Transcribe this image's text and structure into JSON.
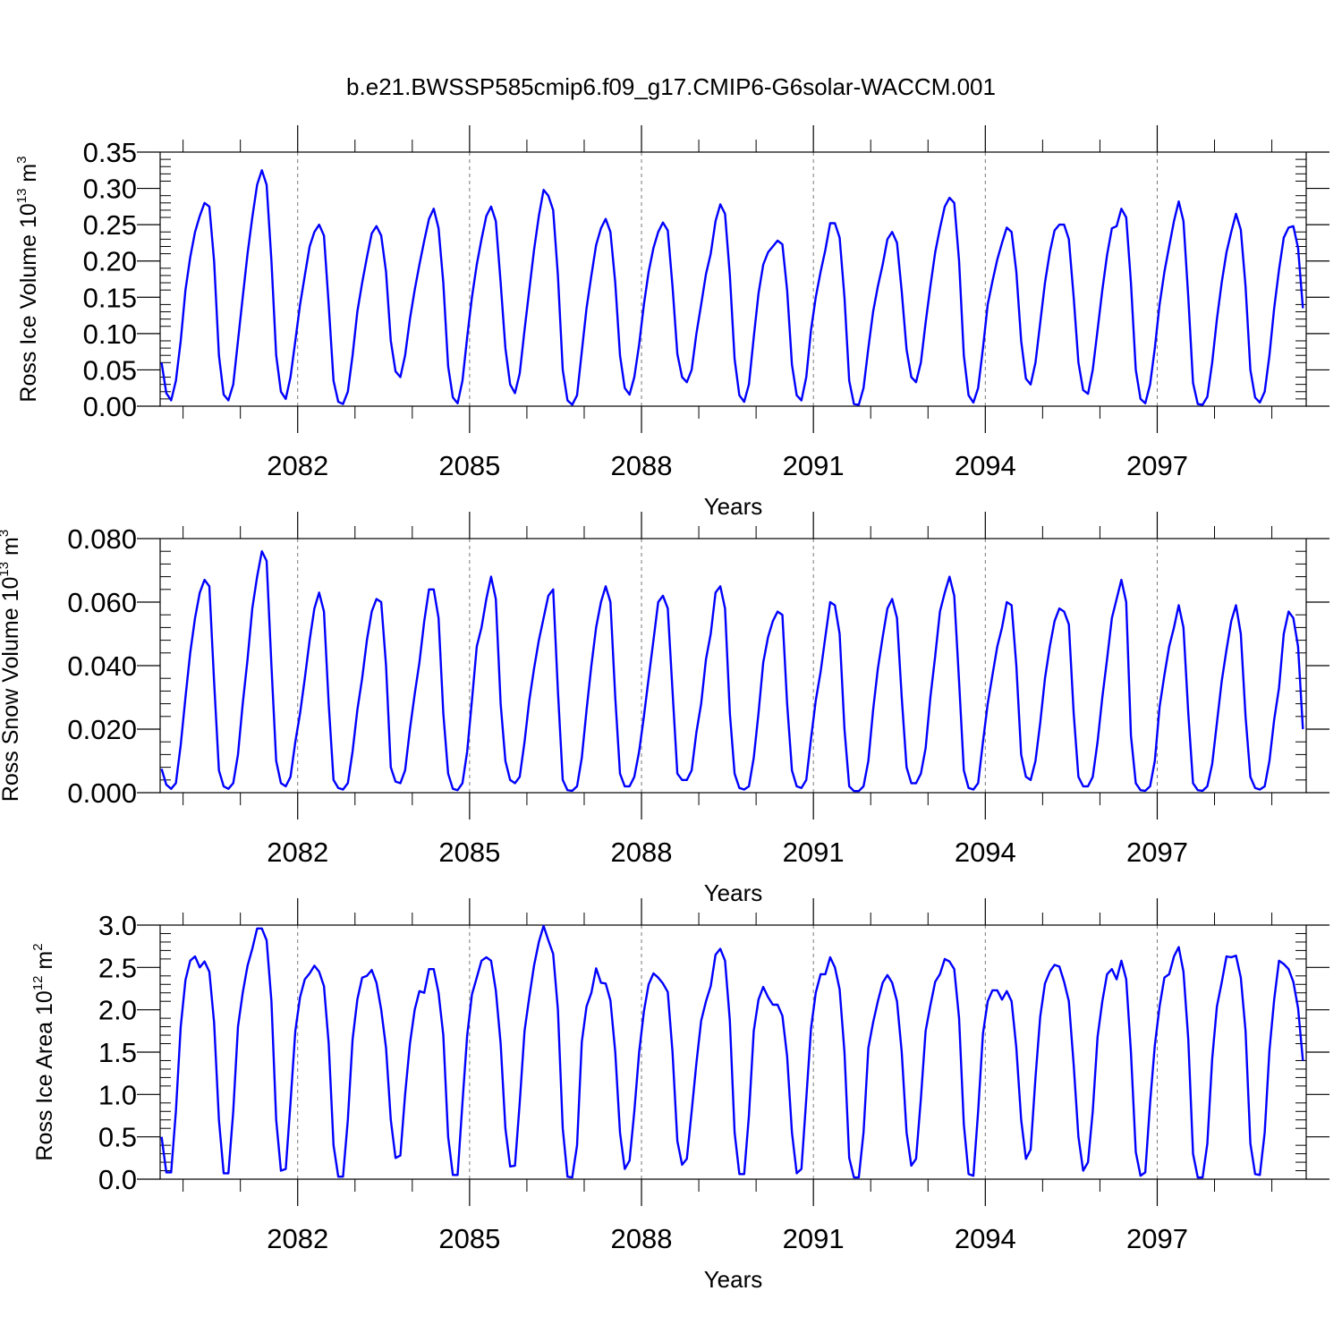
{
  "title": "b.e21.BWSSP585cmip6.f09_g17.CMIP6-G6solar-WACCM.001",
  "chart_data": [
    {
      "type": "line",
      "title": "b.e21.BWSSP585cmip6.f09_g17.CMIP6-G6solar-WACCM.001",
      "ylabel_main": "Ross Ice Volume 10",
      "ylabel_sup1": "13",
      "ylabel_mid": " m",
      "ylabel_sup2": "3",
      "xlabel": "Years",
      "xlim": [
        2079.6,
        2099.6
      ],
      "ylim": [
        0,
        0.35
      ],
      "xticks": [
        2082,
        2085,
        2088,
        2091,
        2094,
        2097
      ],
      "xtick_labels": [
        "2082",
        "2085",
        "2088",
        "2091",
        "2094",
        "2097"
      ],
      "yticks": [
        0,
        0.05,
        0.1,
        0.15,
        0.2,
        0.25,
        0.3,
        0.35
      ],
      "ytick_labels": [
        "0.00",
        "0.05",
        "0.10",
        "0.15",
        "0.20",
        "0.25",
        "0.30",
        "0.35"
      ],
      "grid": "dashed vertical at labeled years",
      "series": [
        {
          "color": "#0000ff",
          "t0": 2079.625,
          "dt": 0.0833333,
          "values": [
            0.06,
            0.018,
            0.008,
            0.035,
            0.09,
            0.16,
            0.205,
            0.24,
            0.262,
            0.28,
            0.275,
            0.2,
            0.07,
            0.016,
            0.008,
            0.03,
            0.09,
            0.15,
            0.21,
            0.26,
            0.305,
            0.325,
            0.305,
            0.2,
            0.07,
            0.02,
            0.01,
            0.04,
            0.09,
            0.14,
            0.18,
            0.22,
            0.24,
            0.25,
            0.235,
            0.14,
            0.035,
            0.006,
            0.003,
            0.02,
            0.07,
            0.13,
            0.17,
            0.205,
            0.238,
            0.248,
            0.235,
            0.185,
            0.09,
            0.048,
            0.04,
            0.07,
            0.12,
            0.16,
            0.195,
            0.228,
            0.258,
            0.272,
            0.245,
            0.17,
            0.055,
            0.012,
            0.004,
            0.035,
            0.095,
            0.15,
            0.195,
            0.23,
            0.262,
            0.275,
            0.255,
            0.17,
            0.08,
            0.03,
            0.018,
            0.045,
            0.105,
            0.16,
            0.215,
            0.262,
            0.298,
            0.29,
            0.27,
            0.18,
            0.05,
            0.008,
            0.002,
            0.015,
            0.075,
            0.135,
            0.18,
            0.222,
            0.245,
            0.258,
            0.24,
            0.17,
            0.07,
            0.025,
            0.016,
            0.04,
            0.085,
            0.14,
            0.185,
            0.218,
            0.24,
            0.253,
            0.242,
            0.165,
            0.072,
            0.04,
            0.033,
            0.05,
            0.1,
            0.14,
            0.182,
            0.21,
            0.255,
            0.278,
            0.265,
            0.18,
            0.065,
            0.015,
            0.006,
            0.03,
            0.095,
            0.155,
            0.195,
            0.212,
            0.22,
            0.228,
            0.223,
            0.16,
            0.057,
            0.015,
            0.008,
            0.04,
            0.105,
            0.15,
            0.185,
            0.215,
            0.252,
            0.252,
            0.232,
            0.15,
            0.035,
            0.003,
            0.002,
            0.025,
            0.08,
            0.13,
            0.165,
            0.195,
            0.23,
            0.24,
            0.225,
            0.158,
            0.078,
            0.04,
            0.033,
            0.06,
            0.115,
            0.165,
            0.212,
            0.245,
            0.275,
            0.287,
            0.28,
            0.2,
            0.07,
            0.015,
            0.005,
            0.025,
            0.08,
            0.14,
            0.172,
            0.202,
            0.225,
            0.246,
            0.24,
            0.185,
            0.09,
            0.038,
            0.03,
            0.06,
            0.115,
            0.17,
            0.212,
            0.242,
            0.25,
            0.25,
            0.23,
            0.15,
            0.06,
            0.022,
            0.017,
            0.05,
            0.105,
            0.16,
            0.208,
            0.245,
            0.248,
            0.272,
            0.26,
            0.17,
            0.05,
            0.01,
            0.004,
            0.03,
            0.08,
            0.14,
            0.185,
            0.22,
            0.255,
            0.282,
            0.255,
            0.15,
            0.032,
            0.003,
            0.002,
            0.013,
            0.06,
            0.12,
            0.17,
            0.212,
            0.24,
            0.265,
            0.243,
            0.165,
            0.05,
            0.012,
            0.005,
            0.02,
            0.07,
            0.135,
            0.188,
            0.232,
            0.246,
            0.248,
            0.218,
            0.135
          ]
        }
      ]
    },
    {
      "type": "line",
      "ylabel_main": "Ross Snow Volume 10",
      "ylabel_sup1": "13",
      "ylabel_mid": " m",
      "ylabel_sup2": "3",
      "xlabel": "Years",
      "xlim": [
        2079.6,
        2099.6
      ],
      "ylim": [
        0,
        0.08
      ],
      "xticks": [
        2082,
        2085,
        2088,
        2091,
        2094,
        2097
      ],
      "xtick_labels": [
        "2082",
        "2085",
        "2088",
        "2091",
        "2094",
        "2097"
      ],
      "yticks": [
        0,
        0.02,
        0.04,
        0.06,
        0.08
      ],
      "ytick_labels": [
        "0.000",
        "0.020",
        "0.040",
        "0.060",
        "0.080"
      ],
      "grid": "dashed vertical at labeled years",
      "series": [
        {
          "color": "#0000ff",
          "t0": 2079.625,
          "dt": 0.0833333,
          "values": [
            0.0075,
            0.0025,
            0.0012,
            0.003,
            0.015,
            0.03,
            0.044,
            0.055,
            0.063,
            0.067,
            0.065,
            0.035,
            0.007,
            0.002,
            0.0012,
            0.003,
            0.012,
            0.028,
            0.042,
            0.058,
            0.068,
            0.076,
            0.073,
            0.04,
            0.01,
            0.003,
            0.002,
            0.005,
            0.016,
            0.025,
            0.036,
            0.048,
            0.058,
            0.063,
            0.057,
            0.028,
            0.004,
            0.0015,
            0.001,
            0.003,
            0.013,
            0.026,
            0.036,
            0.048,
            0.057,
            0.061,
            0.06,
            0.04,
            0.008,
            0.0035,
            0.003,
            0.007,
            0.02,
            0.031,
            0.041,
            0.054,
            0.064,
            0.064,
            0.055,
            0.025,
            0.006,
            0.0012,
            0.0008,
            0.003,
            0.013,
            0.029,
            0.046,
            0.052,
            0.061,
            0.068,
            0.061,
            0.028,
            0.01,
            0.004,
            0.003,
            0.005,
            0.016,
            0.029,
            0.039,
            0.048,
            0.055,
            0.062,
            0.064,
            0.032,
            0.004,
            0.0008,
            0.0006,
            0.002,
            0.011,
            0.026,
            0.04,
            0.052,
            0.06,
            0.065,
            0.06,
            0.03,
            0.006,
            0.002,
            0.002,
            0.005,
            0.013,
            0.024,
            0.036,
            0.048,
            0.06,
            0.062,
            0.058,
            0.032,
            0.006,
            0.004,
            0.004,
            0.007,
            0.019,
            0.028,
            0.042,
            0.05,
            0.063,
            0.065,
            0.058,
            0.025,
            0.006,
            0.0015,
            0.001,
            0.002,
            0.011,
            0.025,
            0.041,
            0.049,
            0.054,
            0.057,
            0.056,
            0.028,
            0.007,
            0.002,
            0.0015,
            0.004,
            0.017,
            0.029,
            0.038,
            0.049,
            0.06,
            0.059,
            0.05,
            0.02,
            0.002,
            0.0005,
            0.0005,
            0.002,
            0.01,
            0.026,
            0.039,
            0.049,
            0.058,
            0.061,
            0.055,
            0.03,
            0.008,
            0.003,
            0.003,
            0.006,
            0.014,
            0.03,
            0.043,
            0.057,
            0.063,
            0.068,
            0.062,
            0.035,
            0.007,
            0.0015,
            0.001,
            0.003,
            0.016,
            0.028,
            0.037,
            0.046,
            0.052,
            0.06,
            0.059,
            0.04,
            0.012,
            0.005,
            0.004,
            0.01,
            0.022,
            0.036,
            0.046,
            0.054,
            0.058,
            0.057,
            0.053,
            0.025,
            0.005,
            0.002,
            0.002,
            0.005,
            0.016,
            0.03,
            0.042,
            0.055,
            0.061,
            0.067,
            0.06,
            0.018,
            0.003,
            0.0008,
            0.0006,
            0.002,
            0.01,
            0.027,
            0.037,
            0.046,
            0.052,
            0.059,
            0.052,
            0.025,
            0.003,
            0.0008,
            0.0006,
            0.002,
            0.009,
            0.022,
            0.035,
            0.045,
            0.054,
            0.059,
            0.05,
            0.024,
            0.005,
            0.0015,
            0.001,
            0.002,
            0.01,
            0.023,
            0.033,
            0.05,
            0.057,
            0.055,
            0.046,
            0.02
          ]
        }
      ]
    },
    {
      "type": "line",
      "ylabel_main": "Ross Ice Area 10",
      "ylabel_sup1": "12",
      "ylabel_mid": " m",
      "ylabel_sup2": "2",
      "xlabel": "Years",
      "xlim": [
        2079.6,
        2099.6
      ],
      "ylim": [
        0,
        3
      ],
      "xticks": [
        2082,
        2085,
        2088,
        2091,
        2094,
        2097
      ],
      "xtick_labels": [
        "2082",
        "2085",
        "2088",
        "2091",
        "2094",
        "2097"
      ],
      "yticks": [
        0,
        0.5,
        1,
        1.5,
        2,
        2.5,
        3
      ],
      "ytick_labels": [
        "0.0",
        "0.5",
        "1.0",
        "1.5",
        "2.0",
        "2.5",
        "3.0"
      ],
      "grid": "dashed vertical at labeled years",
      "series": [
        {
          "color": "#0000ff",
          "t0": 2079.625,
          "dt": 0.0833333,
          "values": [
            0.5,
            0.08,
            0.08,
            0.8,
            1.8,
            2.35,
            2.58,
            2.63,
            2.5,
            2.57,
            2.45,
            1.85,
            0.7,
            0.07,
            0.07,
            0.8,
            1.8,
            2.2,
            2.52,
            2.72,
            2.96,
            2.96,
            2.82,
            2.1,
            0.7,
            0.1,
            0.12,
            0.9,
            1.75,
            2.15,
            2.36,
            2.43,
            2.52,
            2.45,
            2.28,
            1.6,
            0.4,
            0.03,
            0.03,
            0.7,
            1.65,
            2.12,
            2.38,
            2.4,
            2.47,
            2.32,
            2.0,
            1.55,
            0.7,
            0.25,
            0.28,
            1.0,
            1.6,
            2.0,
            2.22,
            2.2,
            2.48,
            2.48,
            2.2,
            1.7,
            0.5,
            0.05,
            0.05,
            0.9,
            1.7,
            2.18,
            2.38,
            2.58,
            2.62,
            2.58,
            2.23,
            1.6,
            0.6,
            0.15,
            0.16,
            0.9,
            1.75,
            2.15,
            2.52,
            2.8,
            2.99,
            2.82,
            2.66,
            2.0,
            0.6,
            0.03,
            0.02,
            0.4,
            1.62,
            2.04,
            2.2,
            2.49,
            2.32,
            2.31,
            2.11,
            1.5,
            0.55,
            0.12,
            0.22,
            0.8,
            1.5,
            1.98,
            2.3,
            2.43,
            2.38,
            2.31,
            2.21,
            1.5,
            0.45,
            0.17,
            0.24,
            0.8,
            1.37,
            1.87,
            2.1,
            2.28,
            2.65,
            2.72,
            2.58,
            1.87,
            0.55,
            0.06,
            0.06,
            0.75,
            1.75,
            2.12,
            2.27,
            2.15,
            2.06,
            2.06,
            1.93,
            1.45,
            0.55,
            0.07,
            0.12,
            0.95,
            1.78,
            2.2,
            2.42,
            2.42,
            2.62,
            2.5,
            2.24,
            1.5,
            0.25,
            0.02,
            0.02,
            0.55,
            1.55,
            1.85,
            2.1,
            2.32,
            2.41,
            2.32,
            2.1,
            1.5,
            0.55,
            0.16,
            0.24,
            0.95,
            1.75,
            2.05,
            2.33,
            2.42,
            2.6,
            2.57,
            2.48,
            1.9,
            0.65,
            0.06,
            0.04,
            0.8,
            1.72,
            2.1,
            2.23,
            2.23,
            2.12,
            2.22,
            2.1,
            1.55,
            0.7,
            0.24,
            0.35,
            1.2,
            1.92,
            2.31,
            2.45,
            2.53,
            2.51,
            2.33,
            2.1,
            1.35,
            0.5,
            0.1,
            0.2,
            0.8,
            1.68,
            2.1,
            2.42,
            2.48,
            2.36,
            2.58,
            2.36,
            1.5,
            0.32,
            0.04,
            0.08,
            0.9,
            1.58,
            2.04,
            2.38,
            2.42,
            2.63,
            2.74,
            2.45,
            1.65,
            0.3,
            0.02,
            0.02,
            0.42,
            1.42,
            2.04,
            2.32,
            2.63,
            2.62,
            2.64,
            2.38,
            1.75,
            0.42,
            0.06,
            0.05,
            0.55,
            1.52,
            2.12,
            2.58,
            2.54,
            2.48,
            2.33,
            2.02,
            1.4
          ]
        }
      ]
    }
  ]
}
